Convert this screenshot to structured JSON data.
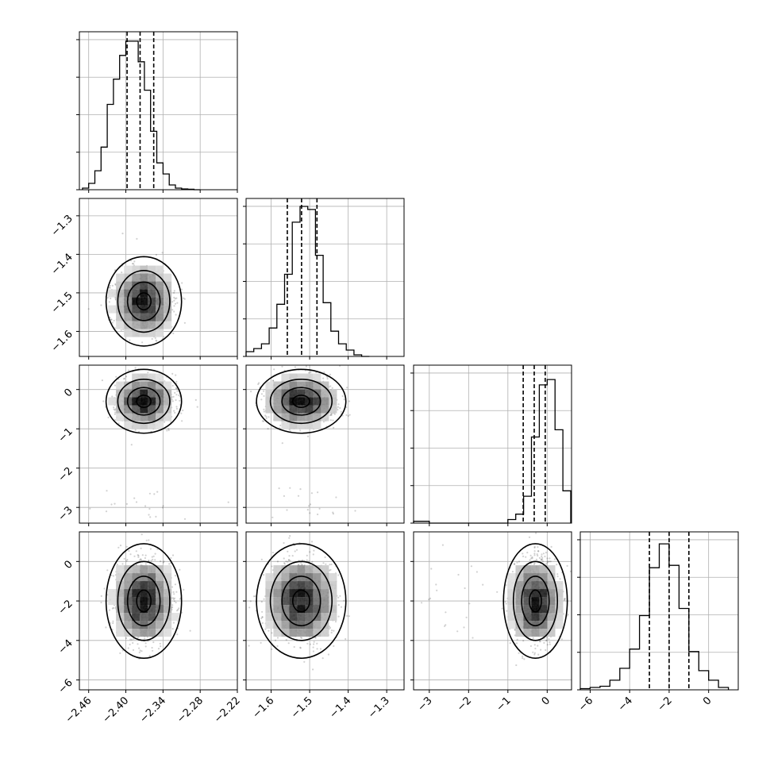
{
  "chart_data": {
    "type": "corner",
    "title": "",
    "parameters": [
      {
        "range": [
          -2.475,
          -2.22
        ],
        "ticks": [
          -2.46,
          -2.4,
          -2.34,
          -2.28,
          -2.22
        ],
        "tick_labels": [
          "−2.46",
          "−2.40",
          "−2.34",
          "−2.28",
          "−2.22"
        ],
        "quantiles": [
          -2.398,
          -2.377,
          -2.355
        ],
        "hist_bins": [
          -2.465,
          -2.455,
          -2.445,
          -2.435,
          -2.425,
          -2.415,
          -2.405,
          -2.395,
          -2.385,
          -2.375,
          -2.365,
          -2.355,
          -2.345,
          -2.335,
          -2.325,
          -2.315,
          -2.305,
          -2.295,
          -2.285
        ],
        "hist_counts": [
          1,
          4,
          12,
          27,
          54,
          70,
          85,
          94,
          94,
          81,
          63,
          37,
          17,
          10,
          3,
          1,
          0.5,
          0.3,
          0
        ],
        "hist_max": 100
      },
      {
        "range": [
          -1.665,
          -1.255
        ],
        "ticks": [
          -1.6,
          -1.5,
          -1.4,
          -1.3
        ],
        "tick_labels": [
          "−1.6",
          "−1.5",
          "−1.4",
          "−1.3"
        ],
        "quantiles": [
          -1.558,
          -1.521,
          -1.481
        ],
        "hist_bins": [
          -1.655,
          -1.635,
          -1.615,
          -1.595,
          -1.575,
          -1.555,
          -1.535,
          -1.515,
          -1.495,
          -1.475,
          -1.455,
          -1.435,
          -1.415,
          -1.395,
          -1.375,
          -1.355
        ],
        "hist_counts": [
          3,
          5,
          8,
          18,
          33,
          52,
          85,
          95,
          93,
          64,
          34,
          16,
          8,
          4,
          1,
          0
        ],
        "hist_max": 100
      },
      {
        "range": [
          -3.4,
          0.62
        ],
        "ticks": [
          -3,
          -2,
          -1,
          0
        ],
        "tick_labels": [
          "−3",
          "−2",
          "−1",
          "0"
        ],
        "quantiles": [
          -0.61,
          -0.33,
          -0.05
        ],
        "hist_bins": [
          -3.3,
          -3.1,
          -2.9,
          -2.7,
          -2.5,
          -2.3,
          -2.1,
          -1.9,
          -1.7,
          -1.5,
          -1.3,
          -1.1,
          -0.9,
          -0.7,
          -0.5,
          -0.3,
          -0.1,
          0.1,
          0.3,
          0.5
        ],
        "hist_counts": [
          1,
          1,
          0,
          0,
          0,
          0,
          0,
          0,
          0,
          0,
          0,
          0,
          2,
          5,
          15,
          48,
          77,
          80,
          52,
          18
        ],
        "hist_max": 88
      },
      {
        "range": [
          -6.5,
          1.5
        ],
        "ticks": [
          -6,
          -4,
          -2,
          0
        ],
        "tick_labels": [
          "−6",
          "−4",
          "−2",
          "0"
        ],
        "quantiles": [
          -3.0,
          -2.0,
          -1.0
        ],
        "hist_bins": [
          -6.25,
          -5.75,
          -5.25,
          -4.75,
          -4.25,
          -3.75,
          -3.25,
          -2.75,
          -2.25,
          -1.75,
          -1.25,
          -0.75,
          -0.25,
          0.25,
          0.75
        ],
        "hist_counts": [
          0.5,
          1,
          1.5,
          4,
          9,
          17,
          31,
          51,
          61,
          52,
          34,
          16,
          8,
          4,
          1
        ],
        "hist_max": 66
      }
    ],
    "blob_centers": [
      -2.371,
      -1.522,
      -0.3,
      -2.0
    ],
    "blob_sigmas": [
      0.021,
      0.04,
      0.28,
      1.0
    ]
  }
}
